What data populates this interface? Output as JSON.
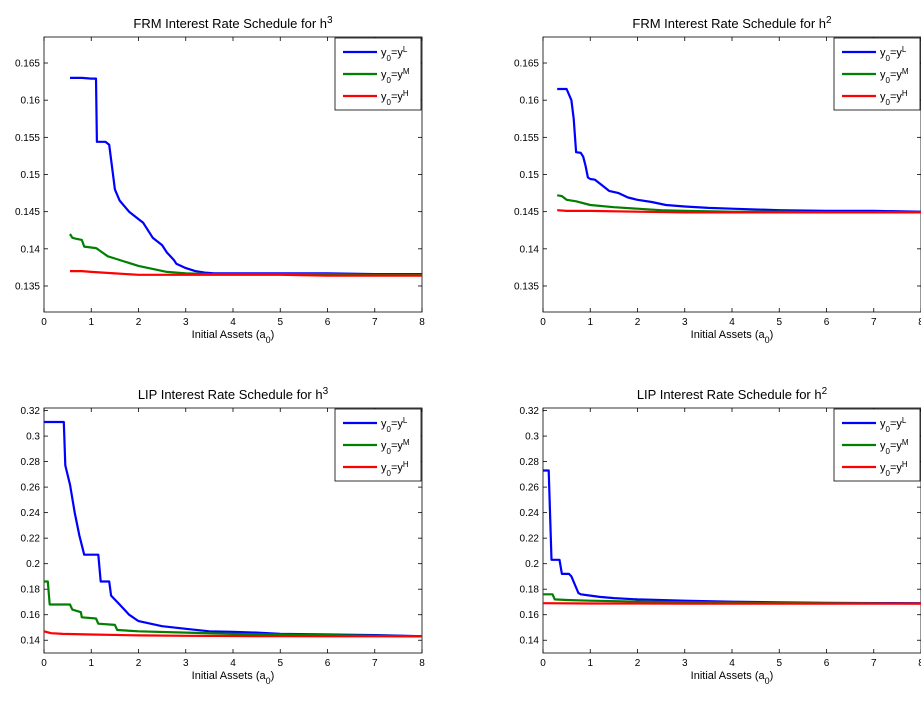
{
  "figure": {
    "panels": 4
  },
  "chart_data": [
    {
      "type": "line",
      "title": "FRM Interest Rate Schedule for h",
      "title_sup": "3",
      "xlabel": "Initial Assets (a",
      "xlabel_sub": "0",
      "xlabel_tail": ")",
      "xlim": [
        0,
        8
      ],
      "ylim": [
        0.1315,
        0.1685
      ],
      "xticks": [
        0,
        1,
        2,
        3,
        4,
        5,
        6,
        7,
        8
      ],
      "yticks": [
        0.135,
        0.14,
        0.145,
        0.15,
        0.155,
        0.16,
        0.165
      ],
      "ytick_labels": [
        "0.135",
        "0.14",
        "0.145",
        "0.15",
        "0.155",
        "0.16",
        "0.165"
      ],
      "legend_position": "top-right",
      "series": [
        {
          "name": "y0=yL",
          "label_parts": {
            "y": "y",
            "sub": "0",
            "eq": "=y",
            "sup": "L"
          },
          "color": "#0000ff",
          "x": [
            0.55,
            0.8,
            1.0,
            1.1,
            1.12,
            1.3,
            1.38,
            1.5,
            1.6,
            1.8,
            2.0,
            2.1,
            2.3,
            2.5,
            2.6,
            2.75,
            2.8,
            3.0,
            3.2,
            3.4,
            3.6,
            4.0,
            5.0,
            6.0,
            7.0,
            8.0
          ],
          "y": [
            0.163,
            0.163,
            0.1629,
            0.1629,
            0.1544,
            0.1544,
            0.154,
            0.148,
            0.1465,
            0.145,
            0.144,
            0.1435,
            0.1415,
            0.1405,
            0.1395,
            0.1385,
            0.138,
            0.1374,
            0.137,
            0.1368,
            0.1367,
            0.1367,
            0.1367,
            0.1367,
            0.1366,
            0.1366
          ]
        },
        {
          "name": "y0=yM",
          "label_parts": {
            "y": "y",
            "sub": "0",
            "eq": "=y",
            "sup": "M"
          },
          "color": "#008000",
          "x": [
            0.55,
            0.6,
            0.65,
            0.8,
            0.85,
            1.1,
            1.15,
            1.35,
            1.5,
            1.7,
            2.0,
            2.3,
            2.6,
            2.8,
            3.0,
            3.5,
            4.0,
            5.0,
            6.0,
            7.0,
            8.0
          ],
          "y": [
            0.142,
            0.1415,
            0.1414,
            0.1412,
            0.1403,
            0.1401,
            0.1399,
            0.139,
            0.1387,
            0.1383,
            0.1377,
            0.1373,
            0.1369,
            0.1368,
            0.1367,
            0.1366,
            0.1366,
            0.1366,
            0.1366,
            0.1365,
            0.1365
          ]
        },
        {
          "name": "y0=yH",
          "label_parts": {
            "y": "y",
            "sub": "0",
            "eq": "=y",
            "sup": "H"
          },
          "color": "#ff0000",
          "x": [
            0.55,
            0.8,
            1.0,
            1.5,
            2.0,
            3.0,
            4.0,
            5.0,
            6.0,
            7.0,
            8.0
          ],
          "y": [
            0.137,
            0.137,
            0.1369,
            0.1367,
            0.1365,
            0.1365,
            0.1365,
            0.1365,
            0.1364,
            0.1364,
            0.1364
          ]
        }
      ]
    },
    {
      "type": "line",
      "title": "FRM Interest Rate Schedule for h",
      "title_sup": "2",
      "xlabel": "Initial Assets (a",
      "xlabel_sub": "0",
      "xlabel_tail": ")",
      "xlim": [
        0,
        8
      ],
      "ylim": [
        0.1315,
        0.1685
      ],
      "xticks": [
        0,
        1,
        2,
        3,
        4,
        5,
        6,
        7,
        8
      ],
      "yticks": [
        0.135,
        0.14,
        0.145,
        0.15,
        0.155,
        0.16,
        0.165
      ],
      "ytick_labels": [
        "0.135",
        "0.14",
        "0.145",
        "0.15",
        "0.155",
        "0.16",
        "0.165"
      ],
      "legend_position": "top-right",
      "series": [
        {
          "name": "y0=yL",
          "label_parts": {
            "y": "y",
            "sub": "0",
            "eq": "=y",
            "sup": "L"
          },
          "color": "#0000ff",
          "x": [
            0.3,
            0.5,
            0.6,
            0.65,
            0.7,
            0.8,
            0.85,
            0.9,
            0.95,
            1.0,
            1.1,
            1.3,
            1.4,
            1.6,
            1.8,
            2.0,
            2.3,
            2.6,
            3.0,
            3.5,
            4.0,
            5.0,
            6.0,
            7.0,
            8.0
          ],
          "y": [
            0.1615,
            0.1615,
            0.16,
            0.1575,
            0.153,
            0.1529,
            0.1524,
            0.1512,
            0.1496,
            0.1494,
            0.1493,
            0.1483,
            0.1478,
            0.1475,
            0.1469,
            0.1466,
            0.1463,
            0.1459,
            0.1457,
            0.1455,
            0.1454,
            0.1452,
            0.1451,
            0.1451,
            0.145
          ]
        },
        {
          "name": "y0=yM",
          "label_parts": {
            "y": "y",
            "sub": "0",
            "eq": "=y",
            "sup": "M"
          },
          "color": "#008000",
          "x": [
            0.3,
            0.4,
            0.5,
            0.7,
            1.0,
            1.5,
            2.0,
            2.5,
            3.0,
            4.0,
            5.0,
            6.0,
            7.0,
            8.0
          ],
          "y": [
            0.1472,
            0.1471,
            0.1466,
            0.1464,
            0.1459,
            0.1456,
            0.1454,
            0.1452,
            0.1451,
            0.145,
            0.145,
            0.1449,
            0.1449,
            0.1449
          ]
        },
        {
          "name": "y0=yH",
          "label_parts": {
            "y": "y",
            "sub": "0",
            "eq": "=y",
            "sup": "H"
          },
          "color": "#ff0000",
          "x": [
            0.3,
            0.5,
            1.0,
            2.0,
            3.0,
            4.0,
            5.0,
            6.0,
            7.0,
            8.0
          ],
          "y": [
            0.1452,
            0.1451,
            0.1451,
            0.145,
            0.1449,
            0.1449,
            0.1449,
            0.1449,
            0.1449,
            0.1449
          ]
        }
      ]
    },
    {
      "type": "line",
      "title": "LIP Interest Rate Schedule for h",
      "title_sup": "3",
      "xlabel": "Initial Assets (a",
      "xlabel_sub": "0",
      "xlabel_tail": ")",
      "xlim": [
        0,
        8
      ],
      "ylim": [
        0.13,
        0.322
      ],
      "xticks": [
        0,
        1,
        2,
        3,
        4,
        5,
        6,
        7,
        8
      ],
      "yticks": [
        0.14,
        0.16,
        0.18,
        0.2,
        0.22,
        0.24,
        0.26,
        0.28,
        0.3,
        0.32
      ],
      "ytick_labels": [
        "0.14",
        "0.16",
        "0.18",
        "0.2",
        "0.22",
        "0.24",
        "0.26",
        "0.28",
        "0.3",
        "0.32"
      ],
      "legend_position": "top-right",
      "series": [
        {
          "name": "y0=yL",
          "label_parts": {
            "y": "y",
            "sub": "0",
            "eq": "=y",
            "sup": "L"
          },
          "color": "#0000ff",
          "x": [
            0,
            0.42,
            0.45,
            0.55,
            0.65,
            0.75,
            0.85,
            1.0,
            1.15,
            1.2,
            1.38,
            1.42,
            1.6,
            1.8,
            2.0,
            2.5,
            3.0,
            3.5,
            4.0,
            4.5,
            5.0,
            6.0,
            7.0,
            8.0
          ],
          "y": [
            0.311,
            0.311,
            0.277,
            0.262,
            0.24,
            0.222,
            0.207,
            0.207,
            0.207,
            0.186,
            0.186,
            0.175,
            0.168,
            0.16,
            0.155,
            0.151,
            0.149,
            0.147,
            0.1465,
            0.146,
            0.145,
            0.1445,
            0.144,
            0.1432
          ]
        },
        {
          "name": "y0=yM",
          "label_parts": {
            "y": "y",
            "sub": "0",
            "eq": "=y",
            "sup": "M"
          },
          "color": "#008000",
          "x": [
            0,
            0.08,
            0.12,
            0.55,
            0.6,
            0.78,
            0.8,
            1.1,
            1.15,
            1.5,
            1.55,
            2.0,
            3.0,
            4.0,
            5.0,
            6.0,
            7.0,
            8.0
          ],
          "y": [
            0.186,
            0.186,
            0.168,
            0.168,
            0.164,
            0.162,
            0.158,
            0.157,
            0.153,
            0.152,
            0.148,
            0.147,
            0.146,
            0.145,
            0.1445,
            0.144,
            0.1435,
            0.1432
          ]
        },
        {
          "name": "y0=yH",
          "label_parts": {
            "y": "y",
            "sub": "0",
            "eq": "=y",
            "sup": "H"
          },
          "color": "#ff0000",
          "x": [
            0,
            0.15,
            0.4,
            1.0,
            2.0,
            3.0,
            4.0,
            5.0,
            6.0,
            7.0,
            8.0
          ],
          "y": [
            0.147,
            0.1455,
            0.145,
            0.1445,
            0.1438,
            0.1435,
            0.1433,
            0.1432,
            0.1431,
            0.1431,
            0.143
          ]
        }
      ]
    },
    {
      "type": "line",
      "title": "LIP Interest Rate Schedule for h",
      "title_sup": "2",
      "xlabel": "Initial Assets (a",
      "xlabel_sub": "0",
      "xlabel_tail": ")",
      "xlim": [
        0,
        8
      ],
      "ylim": [
        0.13,
        0.322
      ],
      "xticks": [
        0,
        1,
        2,
        3,
        4,
        5,
        6,
        7,
        8
      ],
      "yticks": [
        0.14,
        0.16,
        0.18,
        0.2,
        0.22,
        0.24,
        0.26,
        0.28,
        0.3,
        0.32
      ],
      "ytick_labels": [
        "0.14",
        "0.16",
        "0.18",
        "0.2",
        "0.22",
        "0.24",
        "0.26",
        "0.28",
        "0.3",
        "0.32"
      ],
      "legend_position": "top-right",
      "series": [
        {
          "name": "y0=yL",
          "label_parts": {
            "y": "y",
            "sub": "0",
            "eq": "=y",
            "sup": "L"
          },
          "color": "#0000ff",
          "x": [
            0,
            0.12,
            0.18,
            0.35,
            0.4,
            0.55,
            0.6,
            0.75,
            0.8,
            1.0,
            1.2,
            1.5,
            2.0,
            3.0,
            4.0,
            5.0,
            6.0,
            7.0,
            8.0
          ],
          "y": [
            0.273,
            0.273,
            0.203,
            0.203,
            0.192,
            0.192,
            0.19,
            0.177,
            0.176,
            0.175,
            0.174,
            0.173,
            0.172,
            0.171,
            0.1702,
            0.1697,
            0.1693,
            0.1691,
            0.169
          ]
        },
        {
          "name": "y0=yM",
          "label_parts": {
            "y": "y",
            "sub": "0",
            "eq": "=y",
            "sup": "M"
          },
          "color": "#008000",
          "x": [
            0,
            0.2,
            0.25,
            0.5,
            1.0,
            2.0,
            3.0,
            4.0,
            5.0,
            6.0,
            7.0,
            8.0
          ],
          "y": [
            0.176,
            0.176,
            0.172,
            0.1715,
            0.171,
            0.1703,
            0.1698,
            0.1695,
            0.1692,
            0.169,
            0.1689,
            0.1688
          ]
        },
        {
          "name": "y0=yH",
          "label_parts": {
            "y": "y",
            "sub": "0",
            "eq": "=y",
            "sup": "H"
          },
          "color": "#ff0000",
          "x": [
            0,
            1.0,
            2.0,
            3.0,
            4.0,
            5.0,
            6.0,
            7.0,
            8.0
          ],
          "y": [
            0.169,
            0.1688,
            0.1688,
            0.1687,
            0.1687,
            0.1687,
            0.1687,
            0.1687,
            0.1687
          ]
        }
      ]
    }
  ]
}
